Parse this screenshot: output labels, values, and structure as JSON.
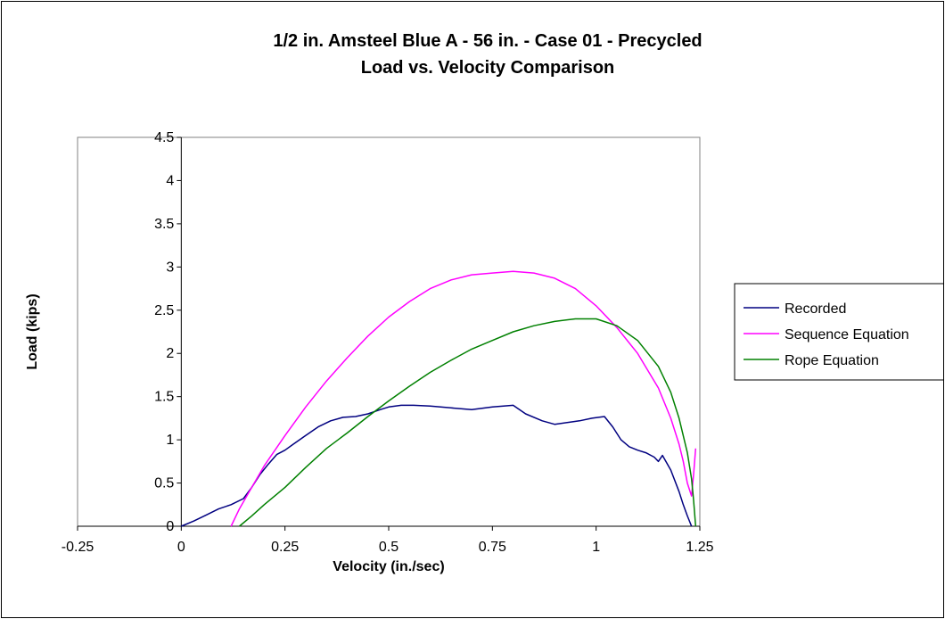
{
  "chart_data": {
    "type": "line",
    "title_line1": "1/2 in. Amsteel Blue A - 56 in. - Case 01 - Precycled",
    "title_line2": "Load vs. Velocity Comparison",
    "xlabel": "Velocity (in./sec)",
    "ylabel": "Load (kips)",
    "xlim": [
      -0.25,
      1.25
    ],
    "ylim": [
      0,
      4.5
    ],
    "xticks": [
      -0.25,
      0,
      0.25,
      0.5,
      0.75,
      1,
      1.25
    ],
    "xtick_labels": [
      "-0.25",
      "0",
      "0.25",
      "0.5",
      "0.75",
      "1",
      "1.25"
    ],
    "yticks": [
      0,
      0.5,
      1,
      1.5,
      2,
      2.5,
      3,
      3.5,
      4,
      4.5
    ],
    "ytick_labels": [
      "0",
      "0.5",
      "1",
      "1.5",
      "2",
      "2.5",
      "3",
      "3.5",
      "4",
      "4.5"
    ],
    "grid": false,
    "legend_position": "right",
    "series": [
      {
        "name": "Recorded",
        "color": "#000080",
        "x": [
          0,
          0.03,
          0.06,
          0.09,
          0.12,
          0.15,
          0.17,
          0.19,
          0.21,
          0.23,
          0.25,
          0.27,
          0.3,
          0.33,
          0.36,
          0.39,
          0.42,
          0.45,
          0.48,
          0.5,
          0.53,
          0.56,
          0.6,
          0.65,
          0.7,
          0.75,
          0.8,
          0.83,
          0.87,
          0.9,
          0.93,
          0.96,
          0.99,
          1.02,
          1.04,
          1.06,
          1.08,
          1.1,
          1.12,
          1.14,
          1.15,
          1.16,
          1.18,
          1.2,
          1.21,
          1.22,
          1.23
        ],
        "y": [
          0,
          0.06,
          0.13,
          0.2,
          0.25,
          0.32,
          0.45,
          0.6,
          0.72,
          0.83,
          0.88,
          0.95,
          1.05,
          1.15,
          1.22,
          1.26,
          1.27,
          1.3,
          1.35,
          1.38,
          1.4,
          1.4,
          1.39,
          1.37,
          1.35,
          1.38,
          1.4,
          1.3,
          1.22,
          1.18,
          1.2,
          1.22,
          1.25,
          1.27,
          1.15,
          1.0,
          0.92,
          0.88,
          0.85,
          0.8,
          0.75,
          0.82,
          0.65,
          0.4,
          0.25,
          0.12,
          0
        ]
      },
      {
        "name": "Sequence Equation",
        "color": "#FF00FF",
        "x": [
          0.12,
          0.14,
          0.17,
          0.2,
          0.25,
          0.3,
          0.35,
          0.4,
          0.45,
          0.5,
          0.55,
          0.6,
          0.65,
          0.7,
          0.75,
          0.8,
          0.85,
          0.9,
          0.95,
          1.0,
          1.05,
          1.1,
          1.15,
          1.18,
          1.2,
          1.21,
          1.22,
          1.23,
          1.235,
          1.24
        ],
        "y": [
          0,
          0.2,
          0.45,
          0.7,
          1.05,
          1.38,
          1.68,
          1.95,
          2.2,
          2.42,
          2.6,
          2.75,
          2.85,
          2.91,
          2.93,
          2.95,
          2.93,
          2.87,
          2.75,
          2.55,
          2.3,
          2.0,
          1.6,
          1.25,
          0.95,
          0.75,
          0.5,
          0.35,
          0.6,
          0.9
        ]
      },
      {
        "name": "Rope Equation",
        "color": "#008000",
        "x": [
          0.14,
          0.17,
          0.2,
          0.25,
          0.3,
          0.35,
          0.4,
          0.45,
          0.5,
          0.55,
          0.6,
          0.65,
          0.7,
          0.75,
          0.8,
          0.85,
          0.9,
          0.95,
          1.0,
          1.05,
          1.1,
          1.15,
          1.18,
          1.2,
          1.22,
          1.23,
          1.235,
          1.24
        ],
        "y": [
          0,
          0.12,
          0.25,
          0.45,
          0.68,
          0.9,
          1.08,
          1.27,
          1.45,
          1.62,
          1.78,
          1.92,
          2.05,
          2.15,
          2.25,
          2.32,
          2.37,
          2.4,
          2.4,
          2.32,
          2.15,
          1.85,
          1.55,
          1.25,
          0.85,
          0.55,
          0.3,
          0
        ]
      }
    ]
  }
}
